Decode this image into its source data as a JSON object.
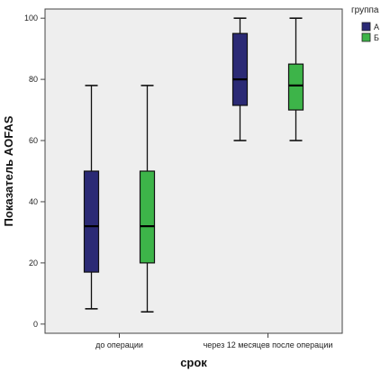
{
  "chart_data": {
    "type": "boxplot",
    "xlabel": "срок",
    "ylabel": "Показатель AOFAS",
    "categories": [
      "до операции",
      "через 12 месяцев после операции"
    ],
    "ylim": [
      -3,
      103
    ],
    "yticks": [
      0,
      20,
      40,
      60,
      80,
      100
    ],
    "grid": false,
    "legend": {
      "title": "группа",
      "placement": "top-right"
    },
    "series": [
      {
        "name": "А",
        "color": "#2b2a75",
        "boxes": [
          {
            "min": 5,
            "q1": 17,
            "median": 32,
            "q3": 50,
            "max": 78
          },
          {
            "min": 60,
            "q1": 71.5,
            "median": 80,
            "q3": 95,
            "max": 100
          }
        ]
      },
      {
        "name": "Б",
        "color": "#3db449",
        "boxes": [
          {
            "min": 4,
            "q1": 20,
            "median": 32,
            "q3": 50,
            "max": 78
          },
          {
            "min": 60,
            "q1": 70,
            "median": 78,
            "q3": 85,
            "max": 100
          }
        ]
      }
    ],
    "plot_background": "#eeeeee"
  }
}
